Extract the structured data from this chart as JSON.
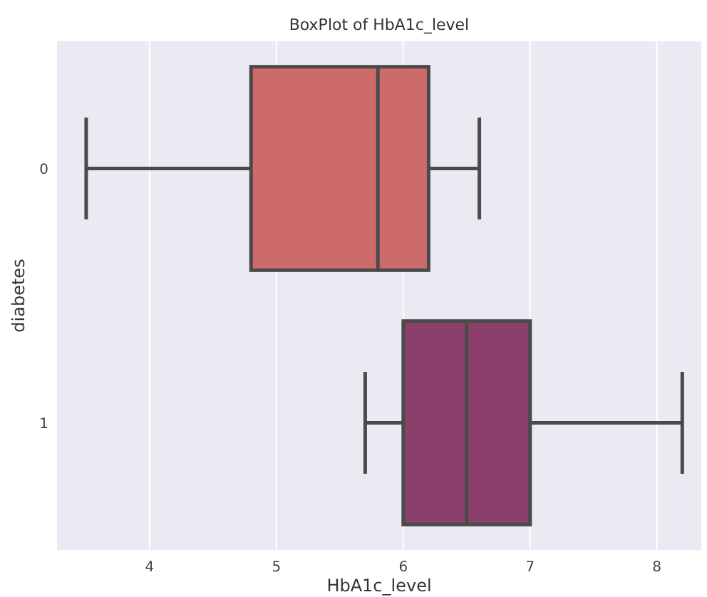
{
  "chart_data": {
    "type": "box",
    "title": "BoxPlot of HbA1c_level",
    "xlabel": "HbA1c_level",
    "ylabel": "diabetes",
    "orientation": "horizontal",
    "categories": [
      "0",
      "1"
    ],
    "colors": [
      "#cd6a6a",
      "#8b3f6a"
    ],
    "boxes": [
      {
        "low": 3.5,
        "q1": 4.8,
        "median": 5.8,
        "q3": 6.2,
        "high": 6.6
      },
      {
        "low": 5.7,
        "q1": 6.0,
        "median": 6.5,
        "q3": 7.0,
        "high": 8.2
      }
    ],
    "xlim": [
      3.27,
      8.35
    ],
    "xticks": [
      4,
      5,
      6,
      7,
      8
    ],
    "grid": "x"
  }
}
